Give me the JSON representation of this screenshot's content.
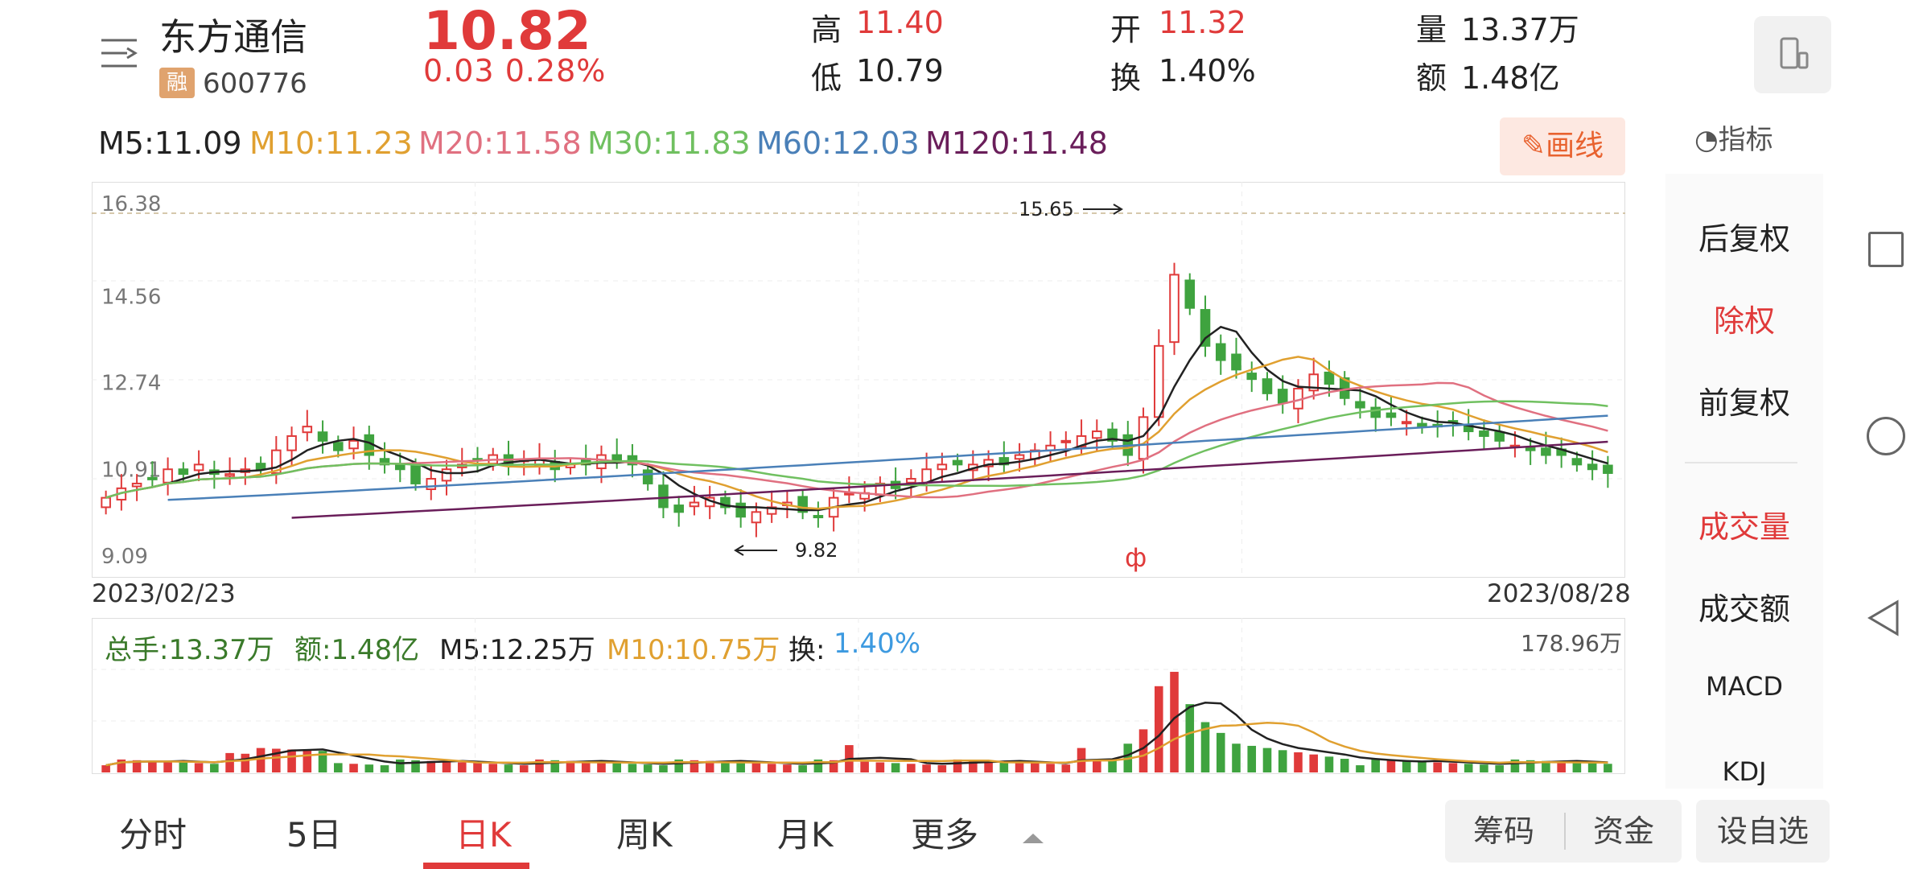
{
  "header": {
    "stock_name": "东方通信",
    "badge_text": "融",
    "stock_code": "600776",
    "price": "10.82",
    "change": "0.03  0.28%",
    "high_label": "高",
    "high_value": "11.40",
    "low_label": "低",
    "low_value": "10.79",
    "open_label": "开",
    "open_value": "11.32",
    "turnover_label": "换",
    "turnover_value": "1.40%",
    "volume_label": "量",
    "volume_value": "13.37万",
    "amount_label": "额",
    "amount_value": "1.48亿"
  },
  "ma_legend": [
    {
      "text": "M5:11.09",
      "color": "#222222"
    },
    {
      "text": "M10:11.23",
      "color": "#e0a030"
    },
    {
      "text": "M20:11.58",
      "color": "#e07080"
    },
    {
      "text": "M30:11.83",
      "color": "#70c060"
    },
    {
      "text": "M60:12.03",
      "color": "#4a80b8"
    },
    {
      "text": "M120:11.48",
      "color": "#6a1e5a"
    }
  ],
  "toolbar": {
    "draw_label": "画线",
    "indicator_label": "指标"
  },
  "side_panel": {
    "items": [
      "后复权",
      "除权",
      "前复权",
      "成交量",
      "成交额",
      "MACD",
      "KDJ"
    ],
    "active": [
      "除权",
      "成交量"
    ]
  },
  "chart_data": {
    "type": "candlestick",
    "price_axis_labels": [
      "16.38",
      "14.56",
      "12.74",
      "10.91",
      "9.09"
    ],
    "start_date": "2023/02/23",
    "end_date": "2023/08/28",
    "annotations": {
      "high": "15.65",
      "low": "9.82"
    },
    "close_approx": [
      10.3,
      10.5,
      10.6,
      10.7,
      10.9,
      10.8,
      11.0,
      10.8,
      10.8,
      10.9,
      10.9,
      11.3,
      11.6,
      11.8,
      11.5,
      11.3,
      11.5,
      11.2,
      11.0,
      10.9,
      10.6,
      10.7,
      10.9,
      11.0,
      11.1,
      11.2,
      11.0,
      11.1,
      11.1,
      10.9,
      11.0,
      11.0,
      11.2,
      11.1,
      11.0,
      10.6,
      10.1,
      10.0,
      10.2,
      10.3,
      10.1,
      9.9,
      10.0,
      10.1,
      10.2,
      10.0,
      9.9,
      10.3,
      10.4,
      10.4,
      10.6,
      10.5,
      10.7,
      10.9,
      11.0,
      11.0,
      11.0,
      11.1,
      11.0,
      11.2,
      11.3,
      11.4,
      11.5,
      11.6,
      11.7,
      11.5,
      11.2,
      12.0,
      13.5,
      15.0,
      14.3,
      13.5,
      13.2,
      13.0,
      12.8,
      12.5,
      12.3,
      12.6,
      12.9,
      12.7,
      12.4,
      12.2,
      12.0,
      12.0,
      11.9,
      11.8,
      11.8,
      11.9,
      11.7,
      11.6,
      11.5,
      11.4,
      11.3,
      11.2,
      11.2,
      11.0,
      10.9,
      10.82
    ]
  },
  "dates": {
    "start": "2023/02/23",
    "end": "2023/08/28"
  },
  "volume": {
    "total": "总手:13.37万",
    "amount": "额:1.48亿",
    "m5": "M5:12.25万",
    "m10": "M10:10.75万",
    "turnover_label": "换:",
    "turnover_value": "1.40%",
    "max_label": "178.96万"
  },
  "tabs": [
    "分时",
    "5日",
    "日K",
    "周K",
    "月K",
    "更多"
  ],
  "active_tab": "日K",
  "bottom_buttons": {
    "chips": "筹码",
    "funds": "资金",
    "watchlist": "设自选"
  },
  "colors": {
    "up": "#e03a3a",
    "down": "#3fa33f",
    "accent": "#e03a3a"
  }
}
